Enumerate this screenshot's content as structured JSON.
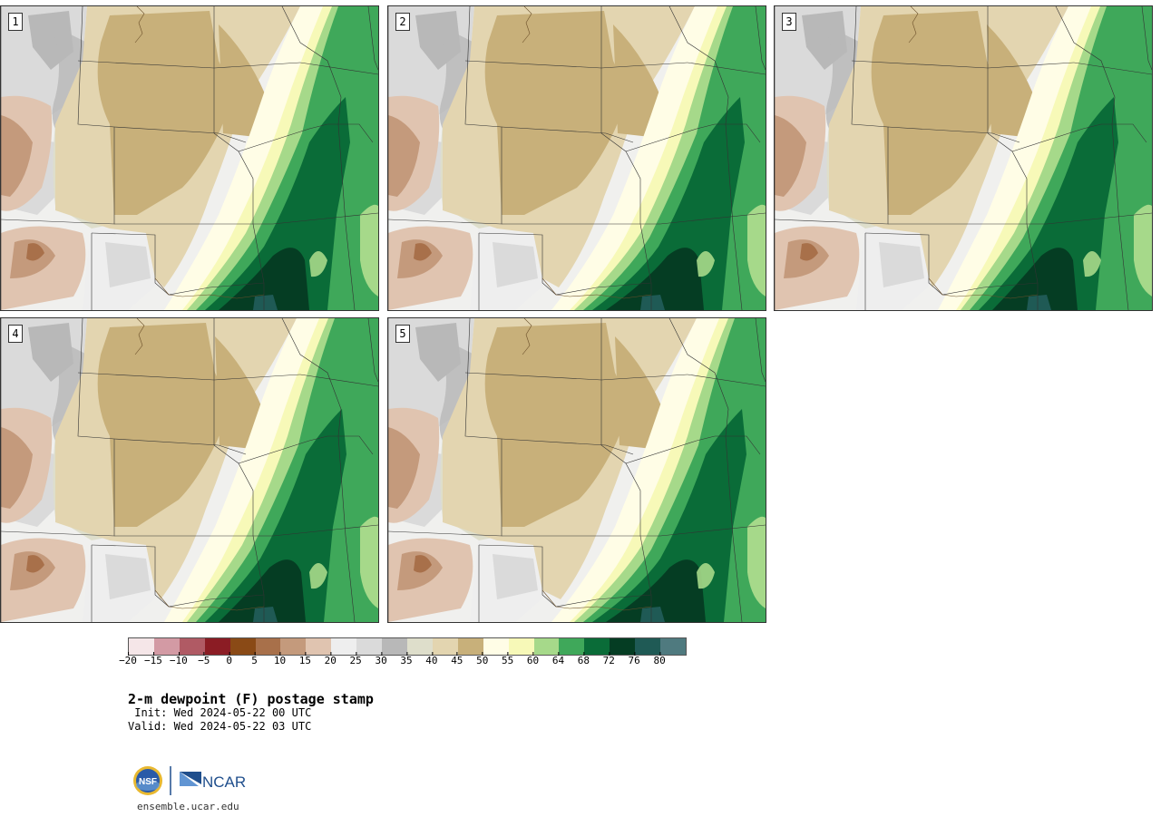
{
  "panels": [
    {
      "label": "1"
    },
    {
      "label": "2"
    },
    {
      "label": "3"
    },
    {
      "label": "4"
    },
    {
      "label": "5"
    }
  ],
  "colorbar": {
    "colors": [
      "#f5e6e8",
      "#d39aa4",
      "#b05a64",
      "#8b1c24",
      "#8a4a16",
      "#a8704a",
      "#c49a7c",
      "#e0c4b0",
      "#eeeeee",
      "#dadada",
      "#b8b8b8",
      "#dedecb",
      "#e3d5b0",
      "#c8b07a",
      "#fffde6",
      "#f7f9b8",
      "#a6d98a",
      "#3fa85a",
      "#0a6c38",
      "#053d23",
      "#1f5a55",
      "#4f7a7f"
    ],
    "ticks": [
      "−20",
      "−15",
      "−10",
      "−5",
      "0",
      "5",
      "10",
      "15",
      "20",
      "25",
      "30",
      "35",
      "40",
      "45",
      "50",
      "55",
      "60",
      "64",
      "68",
      "72",
      "76",
      "80"
    ]
  },
  "title": "2-m dewpoint (F) postage stamp",
  "init": " Init: Wed 2024-05-22 00 UTC",
  "valid": "Valid: Wed 2024-05-22 03 UTC",
  "logos": {
    "nsf": "NSF",
    "ncar": "NCAR"
  },
  "site": "ensemble.ucar.edu"
}
